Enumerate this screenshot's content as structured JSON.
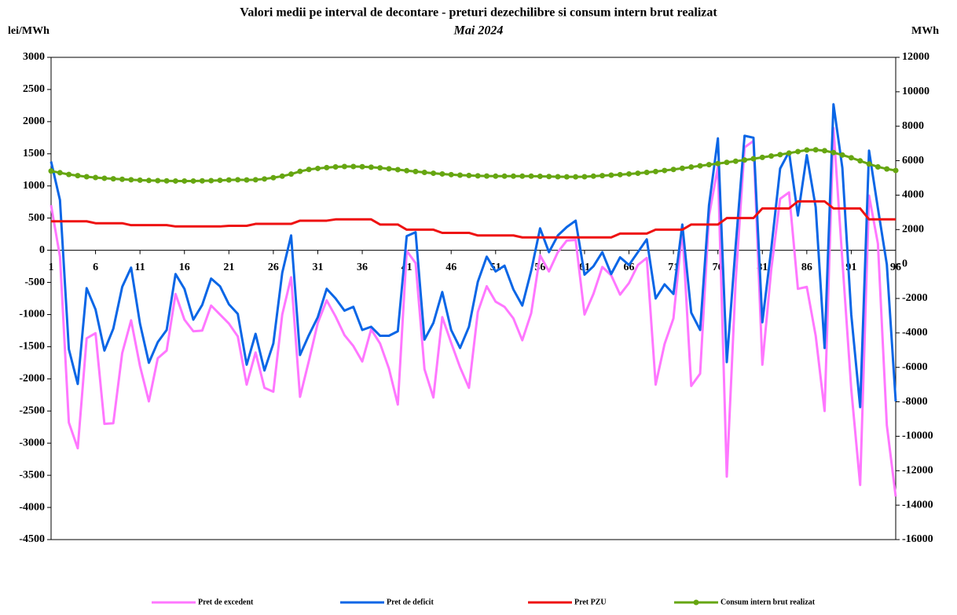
{
  "chart_data": {
    "type": "line",
    "title": "Valori medii pe interval de decontare - preturi dezechilibre si consum intern brut realizat",
    "subtitle": "Mai 2024",
    "y_label": "lei/MWh",
    "y2_label": "MWh",
    "x": [
      1,
      2,
      3,
      4,
      5,
      6,
      7,
      8,
      9,
      10,
      11,
      12,
      13,
      14,
      15,
      16,
      17,
      18,
      19,
      20,
      21,
      22,
      23,
      24,
      25,
      26,
      27,
      28,
      29,
      30,
      31,
      32,
      33,
      34,
      35,
      36,
      37,
      38,
      39,
      40,
      41,
      42,
      43,
      44,
      45,
      46,
      47,
      48,
      49,
      50,
      51,
      52,
      53,
      54,
      55,
      56,
      57,
      58,
      59,
      60,
      61,
      62,
      63,
      64,
      65,
      66,
      67,
      68,
      69,
      70,
      71,
      72,
      73,
      74,
      75,
      76,
      77,
      78,
      79,
      80,
      81,
      82,
      83,
      84,
      85,
      86,
      87,
      88,
      89,
      90,
      91,
      92,
      93,
      94,
      95,
      96
    ],
    "xlim": [
      1,
      96
    ],
    "xticks": [
      1,
      6,
      11,
      16,
      21,
      26,
      31,
      36,
      41,
      46,
      51,
      56,
      61,
      66,
      71,
      76,
      81,
      86,
      91,
      96
    ],
    "ylim": [
      -4500,
      3000
    ],
    "yticks": [
      3000,
      2500,
      2000,
      1500,
      1000,
      500,
      0,
      -500,
      -1000,
      -1500,
      -2000,
      -2500,
      -3000,
      -3500,
      -4000,
      -4500
    ],
    "y2lim": [
      -16000,
      12000
    ],
    "y2ticks": [
      12000,
      10000,
      8000,
      6000,
      4000,
      2000,
      0,
      -2000,
      -4000,
      -6000,
      -8000,
      -10000,
      -12000,
      -14000,
      -16000
    ],
    "grid": false,
    "legend": "bottom",
    "series": [
      {
        "name": "Pret de excedent",
        "color": "#ff77ff",
        "values": [
          700,
          -100,
          -2680,
          -3080,
          -1370,
          -1290,
          -2700,
          -2690,
          -1600,
          -1090,
          -1800,
          -2350,
          -1680,
          -1560,
          -680,
          -1080,
          -1260,
          -1250,
          -860,
          -1000,
          -1140,
          -1340,
          -2090,
          -1590,
          -2140,
          -2200,
          -1000,
          -420,
          -2280,
          -1720,
          -1130,
          -780,
          -1030,
          -1320,
          -1490,
          -1730,
          -1230,
          -1450,
          -1840,
          -2400,
          -10,
          -200,
          -1850,
          -2290,
          -1040,
          -1440,
          -1820,
          -2140,
          -960,
          -560,
          -800,
          -880,
          -1060,
          -1400,
          -980,
          -80,
          -330,
          -30,
          150,
          160,
          -1000,
          -680,
          -260,
          -390,
          -690,
          -510,
          -230,
          -120,
          -2090,
          -1460,
          -1060,
          330,
          -2110,
          -1920,
          530,
          1300,
          -3520,
          -480,
          1600,
          1700,
          -1780,
          -300,
          800,
          900,
          -600,
          -570,
          -1330,
          -2500,
          1900,
          -160,
          -2160,
          -3650,
          850,
          100,
          -2720,
          -3830
        ]
      },
      {
        "name": "Pret de deficit",
        "color": "#0a66e6",
        "values": [
          1380,
          780,
          -1540,
          -2080,
          -590,
          -920,
          -1560,
          -1220,
          -570,
          -270,
          -1140,
          -1750,
          -1430,
          -1240,
          -370,
          -600,
          -1080,
          -850,
          -440,
          -560,
          -840,
          -990,
          -1780,
          -1300,
          -1870,
          -1450,
          -350,
          230,
          -1630,
          -1320,
          -1040,
          -600,
          -750,
          -940,
          -880,
          -1240,
          -1190,
          -1330,
          -1330,
          -1260,
          220,
          280,
          -1390,
          -1130,
          -650,
          -1240,
          -1520,
          -1190,
          -490,
          -100,
          -330,
          -240,
          -610,
          -860,
          -320,
          340,
          -30,
          230,
          360,
          460,
          -380,
          -250,
          -30,
          -370,
          -110,
          -230,
          -30,
          170,
          -750,
          -530,
          -680,
          400,
          -970,
          -1240,
          700,
          1740,
          -1740,
          70,
          1780,
          1750,
          -1120,
          20,
          1270,
          1530,
          540,
          1480,
          670,
          -1520,
          2270,
          1280,
          -1000,
          -2440,
          1550,
          650,
          -220,
          -2350
        ]
      },
      {
        "name": "Pret PZU",
        "color": "#ee1111",
        "values": [
          450,
          450,
          450,
          450,
          450,
          420,
          420,
          420,
          420,
          390,
          390,
          390,
          390,
          390,
          370,
          370,
          370,
          370,
          370,
          370,
          380,
          380,
          380,
          410,
          410,
          410,
          410,
          410,
          460,
          460,
          460,
          460,
          480,
          480,
          480,
          480,
          480,
          400,
          400,
          400,
          320,
          320,
          320,
          320,
          270,
          270,
          270,
          270,
          230,
          230,
          230,
          230,
          230,
          200,
          200,
          200,
          200,
          200,
          200,
          200,
          200,
          200,
          200,
          200,
          260,
          260,
          260,
          260,
          320,
          320,
          320,
          320,
          400,
          400,
          400,
          400,
          500,
          500,
          500,
          500,
          650,
          650,
          650,
          650,
          760,
          760,
          760,
          760,
          650,
          650,
          650,
          650,
          480,
          480,
          480,
          480
        ]
      },
      {
        "name": "Consum intern brut realizat",
        "color": "#66a611",
        "axis": "y2",
        "values": [
          5400,
          5300,
          5200,
          5130,
          5070,
          5020,
          4980,
          4950,
          4920,
          4890,
          4870,
          4850,
          4840,
          4830,
          4820,
          4820,
          4820,
          4830,
          4840,
          4860,
          4880,
          4890,
          4880,
          4890,
          4940,
          5010,
          5100,
          5220,
          5380,
          5490,
          5550,
          5600,
          5640,
          5660,
          5660,
          5650,
          5620,
          5580,
          5530,
          5480,
          5420,
          5370,
          5320,
          5270,
          5230,
          5190,
          5160,
          5140,
          5120,
          5110,
          5100,
          5100,
          5100,
          5100,
          5100,
          5090,
          5080,
          5070,
          5060,
          5060,
          5070,
          5100,
          5130,
          5160,
          5190,
          5230,
          5270,
          5320,
          5370,
          5430,
          5490,
          5560,
          5630,
          5700,
          5770,
          5830,
          5900,
          5970,
          6040,
          6110,
          6190,
          6270,
          6350,
          6440,
          6530,
          6620,
          6630,
          6580,
          6470,
          6330,
          6170,
          5990,
          5810,
          5640,
          5520,
          5430
        ]
      }
    ]
  }
}
